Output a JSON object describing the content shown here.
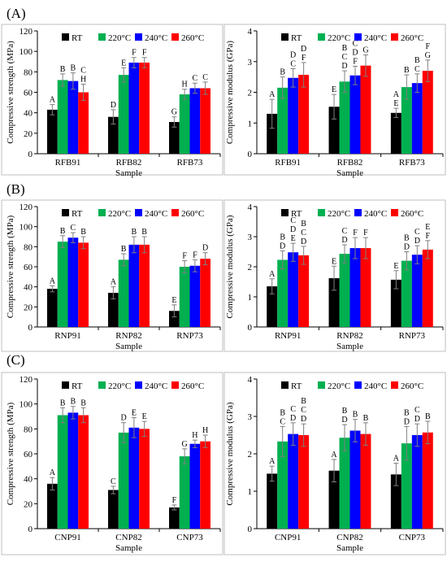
{
  "panel_labels": [
    "(A)",
    "(B)",
    "(C)"
  ],
  "legend": {
    "items": [
      "RT",
      "220°C",
      "240°C",
      "260°C"
    ],
    "colors": [
      "#000000",
      "#00b050",
      "#0000ff",
      "#ff0000"
    ]
  },
  "chart_data": [
    {
      "type": "bar",
      "panel": "A",
      "categories": [
        "RFB91",
        "RFB82",
        "RFB73"
      ],
      "xlabel": "Sample",
      "ylabel": "Compressive strength (MPa)",
      "ylim": [
        0,
        120
      ],
      "yticks": [
        0,
        20,
        40,
        60,
        80,
        100,
        120
      ],
      "grid": false,
      "legend_position": "top",
      "series": [
        {
          "name": "RT",
          "values": [
            43,
            36,
            31
          ],
          "errors": [
            5,
            7,
            5
          ],
          "letters": [
            "A",
            "D",
            "G"
          ]
        },
        {
          "name": "220°C",
          "values": [
            72,
            77,
            58
          ],
          "errors": [
            6,
            7,
            5
          ],
          "letters": [
            "B",
            "E",
            "H"
          ]
        },
        {
          "name": "240°C",
          "values": [
            71,
            89,
            64
          ],
          "errors": [
            8,
            5,
            5
          ],
          "letters": [
            "B",
            "F",
            "C"
          ]
        },
        {
          "name": "260°C",
          "values": [
            60,
            89,
            64
          ],
          "errors": [
            8,
            5,
            6
          ],
          "letters": [
            "C\nH",
            "F",
            "C"
          ]
        }
      ]
    },
    {
      "type": "bar",
      "panel": "A",
      "categories": [
        "RFB91",
        "RFB82",
        "RFB73"
      ],
      "xlabel": "Sample",
      "ylabel": "Compressive modulus (GPa)",
      "ylim": [
        0,
        4
      ],
      "yticks": [
        0,
        1,
        2,
        3,
        4
      ],
      "grid": false,
      "legend_position": "top",
      "series": [
        {
          "name": "RT",
          "values": [
            1.3,
            1.53,
            1.33
          ],
          "errors": [
            0.47,
            0.4,
            0.15
          ],
          "letters": [
            "A",
            "E",
            "A\nE"
          ]
        },
        {
          "name": "220°C",
          "values": [
            2.15,
            2.35,
            2.17
          ],
          "errors": [
            0.35,
            0.35,
            0.4
          ],
          "letters": [
            "B",
            "B\nC\nD",
            "B"
          ]
        },
        {
          "name": "240°C",
          "values": [
            2.47,
            2.55,
            2.3
          ],
          "errors": [
            0.3,
            0.3,
            0.3
          ],
          "letters": [
            "D\nC",
            "C\nD\nF",
            "B\nC"
          ]
        },
        {
          "name": "260°C",
          "values": [
            2.57,
            2.87,
            2.7
          ],
          "errors": [
            0.4,
            0.35,
            0.35
          ],
          "letters": [
            "D\nF",
            "G",
            "F\nG"
          ]
        }
      ]
    },
    {
      "type": "bar",
      "panel": "B",
      "categories": [
        "RNP91",
        "RNP82",
        "RNP73"
      ],
      "xlabel": "Sample",
      "ylabel": "Compressive strength (MPa)",
      "ylim": [
        0,
        120
      ],
      "yticks": [
        0,
        20,
        40,
        60,
        80,
        100,
        120
      ],
      "grid": false,
      "legend_position": "top",
      "series": [
        {
          "name": "RT",
          "values": [
            38,
            34,
            16
          ],
          "errors": [
            3,
            6,
            6
          ],
          "letters": [
            "A",
            "A",
            "E"
          ]
        },
        {
          "name": "220°C",
          "values": [
            85,
            67,
            60
          ],
          "errors": [
            6,
            6,
            6
          ],
          "letters": [
            "B",
            "B",
            "F"
          ]
        },
        {
          "name": "240°C",
          "values": [
            89,
            82,
            61
          ],
          "errors": [
            5,
            8,
            6
          ],
          "letters": [
            "C",
            "B",
            "F"
          ]
        },
        {
          "name": "260°C",
          "values": [
            84,
            82,
            68
          ],
          "errors": [
            6,
            8,
            6
          ],
          "letters": [
            "B",
            "B",
            "D"
          ]
        }
      ]
    },
    {
      "type": "bar",
      "panel": "B",
      "categories": [
        "RNP91",
        "RNP82",
        "RNP73"
      ],
      "xlabel": "Sample",
      "ylabel": "Compressive modulus (GPa)",
      "ylim": [
        0,
        4
      ],
      "yticks": [
        0,
        1,
        2,
        3,
        4
      ],
      "grid": false,
      "legend_position": "top",
      "series": [
        {
          "name": "RT",
          "values": [
            1.35,
            1.62,
            1.57
          ],
          "errors": [
            0.25,
            0.4,
            0.3
          ],
          "letters": [
            "A",
            "E",
            "E"
          ]
        },
        {
          "name": "220°C",
          "values": [
            2.23,
            2.43,
            2.2
          ],
          "errors": [
            0.3,
            0.3,
            0.3
          ],
          "letters": [
            "B\nD",
            "C\nD",
            "B\nD"
          ]
        },
        {
          "name": "240°C",
          "values": [
            2.48,
            2.62,
            2.4
          ],
          "errors": [
            0.3,
            0.35,
            0.3
          ],
          "letters": [
            "C\nD\nE",
            "F",
            "C\nD"
          ]
        },
        {
          "name": "260°C",
          "values": [
            2.38,
            2.62,
            2.57
          ],
          "errors": [
            0.3,
            0.35,
            0.3
          ],
          "letters": [
            "B\nC\nD",
            "F",
            "E\nF"
          ]
        }
      ]
    },
    {
      "type": "bar",
      "panel": "C",
      "categories": [
        "CNP91",
        "CNP82",
        "CNP73"
      ],
      "xlabel": "Sample",
      "ylabel": "Compressive strength (MPa)",
      "ylim": [
        0,
        120
      ],
      "yticks": [
        0,
        20,
        40,
        60,
        80,
        100,
        120
      ],
      "grid": false,
      "legend_position": "top",
      "series": [
        {
          "name": "RT",
          "values": [
            36,
            31,
            17
          ],
          "errors": [
            5,
            3,
            2
          ],
          "letters": [
            "A",
            "C",
            "F"
          ]
        },
        {
          "name": "220°C",
          "values": [
            91,
            77,
            58
          ],
          "errors": [
            6,
            8,
            6
          ],
          "letters": [
            "B",
            "D",
            "G"
          ]
        },
        {
          "name": "240°C",
          "values": [
            93,
            81,
            68
          ],
          "errors": [
            5,
            8,
            3
          ],
          "letters": [
            "B",
            "E",
            "H"
          ]
        },
        {
          "name": "260°C",
          "values": [
            91,
            80,
            70
          ],
          "errors": [
            6,
            6,
            5
          ],
          "letters": [
            "B",
            "E",
            "H"
          ]
        }
      ]
    },
    {
      "type": "bar",
      "panel": "C",
      "categories": [
        "CNP91",
        "CNP82",
        "CNP73"
      ],
      "xlabel": "Sample",
      "ylabel": "Compressive modulus (GPa)",
      "ylim": [
        0,
        4
      ],
      "yticks": [
        0,
        1,
        2,
        3,
        4
      ],
      "grid": false,
      "legend_position": "top",
      "series": [
        {
          "name": "RT",
          "values": [
            1.47,
            1.55,
            1.45
          ],
          "errors": [
            0.2,
            0.3,
            0.3
          ],
          "letters": [
            "A",
            "A",
            "A"
          ]
        },
        {
          "name": "220°C",
          "values": [
            2.33,
            2.43,
            2.28
          ],
          "errors": [
            0.4,
            0.35,
            0.45
          ],
          "letters": [
            "B\nC",
            "B\nD",
            "B\nD"
          ]
        },
        {
          "name": "240°C",
          "values": [
            2.53,
            2.62,
            2.5
          ],
          "errors": [
            0.3,
            0.3,
            0.3
          ],
          "letters": [
            "C\nD",
            "B",
            "C\nD"
          ]
        },
        {
          "name": "260°C",
          "values": [
            2.5,
            2.53,
            2.57
          ],
          "errors": [
            0.3,
            0.3,
            0.3
          ],
          "letters": [
            "B\nC\nD",
            "B",
            "B"
          ]
        }
      ]
    }
  ]
}
